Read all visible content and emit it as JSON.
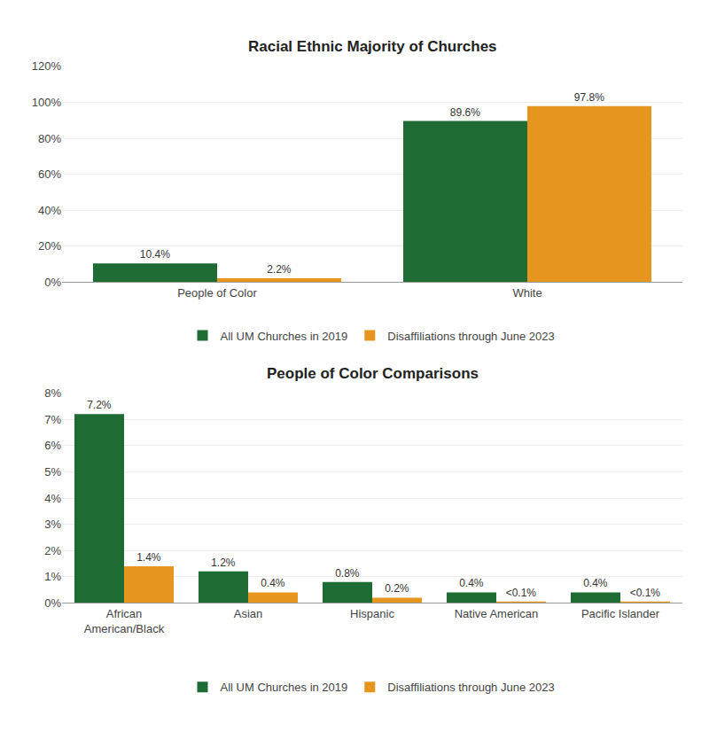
{
  "chart_data": [
    {
      "type": "bar",
      "title": "Racial Ethnic Majority of Churches",
      "categories": [
        "People of Color",
        "White"
      ],
      "series": [
        {
          "name": "All UM Churches in 2019",
          "color": "#1e6b34",
          "values": [
            10.4,
            89.6
          ],
          "value_labels": [
            "10.4%",
            "89.6%"
          ]
        },
        {
          "name": "Disaffiliations through June 2023",
          "color": "#e6951e",
          "values": [
            2.2,
            97.8
          ],
          "value_labels": [
            "2.2%",
            "97.8%"
          ]
        }
      ],
      "ylim": [
        0,
        120
      ],
      "yticks": [
        {
          "value": 0,
          "label": "0%"
        },
        {
          "value": 20,
          "label": "20%"
        },
        {
          "value": 40,
          "label": "40%"
        },
        {
          "value": 60,
          "label": "60%"
        },
        {
          "value": 80,
          "label": "80%"
        },
        {
          "value": 100,
          "label": "100%"
        },
        {
          "value": 120,
          "label": "120%"
        }
      ],
      "grid": true,
      "data_labels": true,
      "legend": "bottom"
    },
    {
      "type": "bar",
      "title": "People of Color Comparisons",
      "categories": [
        "African\nAmerican/Black",
        "Asian",
        "Hispanic",
        "Native American",
        "Pacific Islander"
      ],
      "series": [
        {
          "name": "All UM Churches in 2019",
          "color": "#1e6b34",
          "values": [
            7.2,
            1.2,
            0.8,
            0.4,
            0.4
          ],
          "value_labels": [
            "7.2%",
            "1.2%",
            "0.8%",
            "0.4%",
            "0.4%"
          ]
        },
        {
          "name": "Disaffiliations through June 2023",
          "color": "#e6951e",
          "values": [
            1.4,
            0.4,
            0.2,
            0.05,
            0.05
          ],
          "value_labels": [
            "1.4%",
            "0.4%",
            "0.2%",
            "<0.1%",
            "<0.1%"
          ]
        }
      ],
      "ylim": [
        0,
        8
      ],
      "yticks": [
        {
          "value": 0,
          "label": "0%"
        },
        {
          "value": 1,
          "label": "1%"
        },
        {
          "value": 2,
          "label": "2%"
        },
        {
          "value": 3,
          "label": "3%"
        },
        {
          "value": 4,
          "label": "4%"
        },
        {
          "value": 5,
          "label": "5%"
        },
        {
          "value": 6,
          "label": "6%"
        },
        {
          "value": 7,
          "label": "7%"
        },
        {
          "value": 8,
          "label": "8%"
        }
      ],
      "grid": true,
      "data_labels": true,
      "legend": "bottom"
    }
  ]
}
